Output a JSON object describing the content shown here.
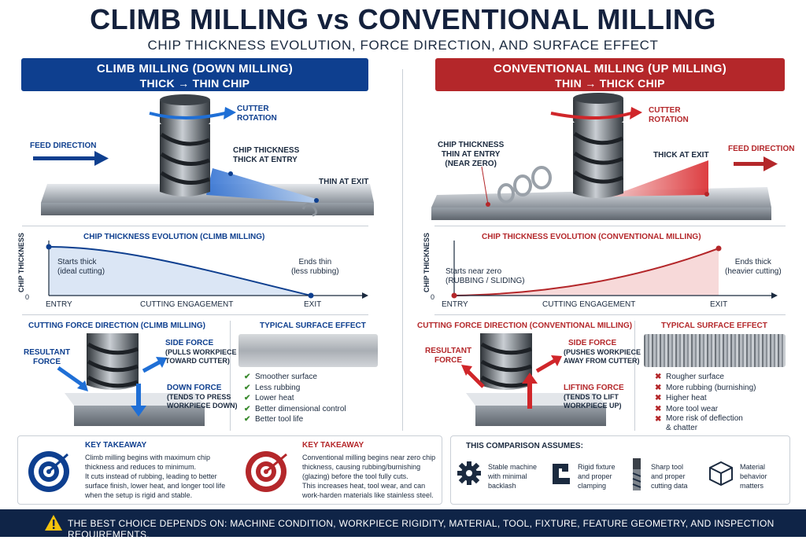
{
  "header": {
    "title": "CLIMB MILLING vs CONVENTIONAL MILLING",
    "subtitle": "CHIP THICKNESS EVOLUTION, FORCE DIRECTION, AND SURFACE EFFECT"
  },
  "colors": {
    "climb": "#0e3f8f",
    "conventional": "#b4272a",
    "footer": "#0f2447",
    "good": "#3a8a2e"
  },
  "climb": {
    "banner_title": "CLIMB MILLING (DOWN MILLING)",
    "banner_sub": "THICK → THIN CHIP",
    "cutter_rotation": "CUTTER\nROTATION",
    "feed_direction": "FEED DIRECTION",
    "chip_entry": "CHIP THICKNESS\nTHICK AT ENTRY",
    "thin_exit": "THIN AT EXIT",
    "chart_title": "CHIP THICKNESS EVOLUTION (CLIMB MILLING)",
    "y_axis": "CHIP THICKNESS",
    "x_zero": "0",
    "x_entry": "ENTRY",
    "x_mid": "CUTTING ENGAGEMENT",
    "x_exit": "EXIT",
    "start_note": "Starts thick\n(ideal cutting)",
    "end_note": "Ends thin\n(less rubbing)",
    "force_title": "CUTTING FORCE DIRECTION (CLIMB MILLING)",
    "resultant": "RESULTANT\nFORCE",
    "side_force": "SIDE FORCE",
    "side_force_note": "(PULLS WORKPIECE\nTOWARD CUTTER)",
    "down_force": "DOWN FORCE",
    "down_force_note": "(TENDS TO PRESS\nWORKPIECE DOWN)",
    "surface_title": "TYPICAL SURFACE EFFECT",
    "effects": [
      "Smoother surface",
      "Less rubbing",
      "Lower heat",
      "Better dimensional control",
      "Better tool life"
    ],
    "takeaway_title": "KEY TAKEAWAY",
    "takeaway_text": "Climb milling begins with maximum chip\nthickness and reduces to minimum.\nIt cuts instead of rubbing, leading to better\nsurface finish, lower heat, and longer tool life\nwhen the setup is rigid and stable."
  },
  "conventional": {
    "banner_title": "CONVENTIONAL MILLING (UP MILLING)",
    "banner_sub": "THIN → THICK CHIP",
    "cutter_rotation": "CUTTER\nROTATION",
    "feed_direction": "FEED DIRECTION",
    "chip_entry": "CHIP THICKNESS\nTHIN AT ENTRY\n(NEAR ZERO)",
    "thick_exit": "THICK AT EXIT",
    "chart_title": "CHIP THICKNESS EVOLUTION (CONVENTIONAL MILLING)",
    "y_axis": "CHIP THICKNESS",
    "x_zero": "0",
    "x_entry": "ENTRY",
    "x_mid": "CUTTING ENGAGEMENT",
    "x_exit": "EXIT",
    "start_note": "Starts near zero\n(RUBBING / SLIDING)",
    "end_note": "Ends thick\n(heavier cutting)",
    "force_title": "CUTTING FORCE DIRECTION (CONVENTIONAL MILLING)",
    "resultant": "RESULTANT\nFORCE",
    "side_force": "SIDE FORCE",
    "side_force_note": "(PUSHES WORKPIECE\nAWAY FROM CUTTER)",
    "lift_force": "LIFTING FORCE",
    "lift_force_note": "(TENDS TO LIFT\nWORKPIECE UP)",
    "surface_title": "TYPICAL SURFACE EFFECT",
    "effects": [
      "Rougher surface",
      "More rubbing (burnishing)",
      "Higher heat",
      "More tool wear",
      "More risk of deflection\n& chatter"
    ],
    "takeaway_title": "KEY TAKEAWAY",
    "takeaway_text": "Conventional milling begins near zero chip\nthickness, causing rubbing/burnishing\n(glazing) before the tool fully cuts.\nThis increases heat, tool wear, and can\nwork-harden materials like stainless steel."
  },
  "assumptions": {
    "title": "THIS COMPARISON ASSUMES:",
    "items": [
      {
        "icon": "gear-icon",
        "text": "Stable machine\nwith minimal\nbacklash"
      },
      {
        "icon": "clamp-icon",
        "text": "Rigid fixture\nand proper\nclamping"
      },
      {
        "icon": "end-mill-icon",
        "text": "Sharp tool\nand proper\ncutting data"
      },
      {
        "icon": "cube-icon",
        "text": "Material\nbehavior\nmatters"
      }
    ]
  },
  "footer": {
    "text": "THE BEST CHOICE DEPENDS ON: MACHINE CONDITION, WORKPIECE RIGIDITY, MATERIAL, TOOL, FIXTURE, FEATURE GEOMETRY, AND INSPECTION REQUIREMENTS."
  }
}
